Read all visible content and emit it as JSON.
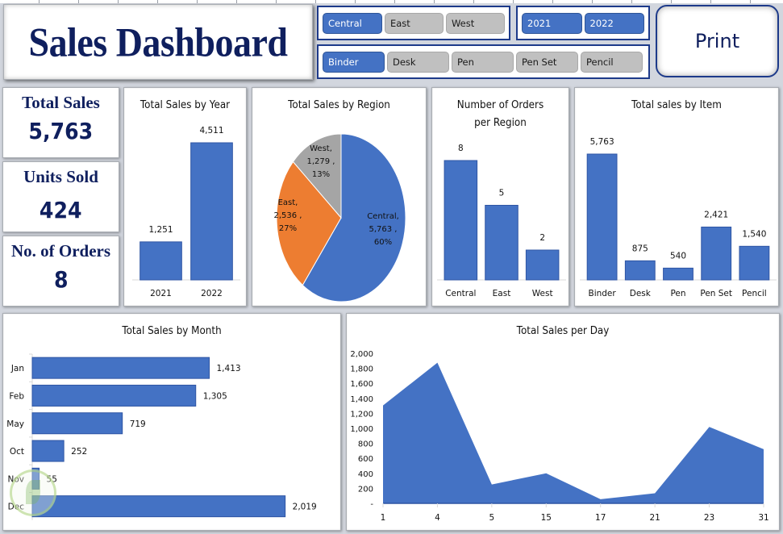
{
  "header": {
    "title": "Sales Dashboard",
    "print_label": "Print"
  },
  "slicers": {
    "region": [
      {
        "label": "Central",
        "selected": true
      },
      {
        "label": "East",
        "selected": false
      },
      {
        "label": "West",
        "selected": false
      }
    ],
    "year": [
      {
        "label": "2021",
        "selected": true
      },
      {
        "label": "2022",
        "selected": true
      }
    ],
    "item": [
      {
        "label": "Binder",
        "selected": true
      },
      {
        "label": "Desk",
        "selected": false
      },
      {
        "label": "Pen",
        "selected": false
      },
      {
        "label": "Pen Set",
        "selected": false
      },
      {
        "label": "Pencil",
        "selected": false
      }
    ]
  },
  "kpis": [
    {
      "label": "Total Sales",
      "value": "5,763"
    },
    {
      "label": "Units Sold",
      "value": "424"
    },
    {
      "label": "No. of Orders",
      "value": "8"
    }
  ],
  "colors": {
    "bar": "#4472c4",
    "bar_border": "#2f55a4",
    "east": "#ed7d31",
    "west": "#a5a5a5",
    "title_text": "#0f1f5e",
    "slicer_border": "#1d3a8a"
  },
  "chart_data": [
    {
      "id": "sales_by_year",
      "type": "bar",
      "title": "Total Sales by Year",
      "categories": [
        "2021",
        "2022"
      ],
      "values": [
        1251,
        4511
      ],
      "labels": [
        "1,251",
        "4,511"
      ]
    },
    {
      "id": "sales_by_region",
      "type": "pie",
      "title": "Total Sales by Region",
      "categories": [
        "Central",
        "East",
        "West"
      ],
      "values": [
        5763,
        2536,
        1279
      ],
      "percents": [
        60,
        27,
        13
      ],
      "labels": [
        [
          "Central,",
          "5,763 ,",
          "60%"
        ],
        [
          "East,",
          "2,536 ,",
          "27%"
        ],
        [
          "West,",
          "1,279 ,",
          "13%"
        ]
      ]
    },
    {
      "id": "orders_by_region",
      "type": "bar",
      "title": [
        "Number of Orders",
        "per Region"
      ],
      "categories": [
        "Central",
        "East",
        "West"
      ],
      "values": [
        8,
        5,
        2
      ],
      "labels": [
        "8",
        "5",
        "2"
      ]
    },
    {
      "id": "sales_by_item",
      "type": "bar",
      "title": "Total sales by Item",
      "categories": [
        "Binder",
        "Desk",
        "Pen",
        "Pen Set",
        "Pencil"
      ],
      "values": [
        5763,
        875,
        540,
        2421,
        1540
      ],
      "labels": [
        "5,763",
        "875",
        "540",
        "2,421",
        "1,540"
      ]
    },
    {
      "id": "sales_by_month",
      "type": "bar",
      "orientation": "horizontal",
      "title": "Total Sales by Month",
      "categories": [
        "Jan",
        "Feb",
        "May",
        "Oct",
        "Nov",
        "Dec"
      ],
      "values": [
        1413,
        1305,
        719,
        252,
        55,
        2019
      ],
      "labels": [
        "1,413",
        "1,305",
        "719",
        "252",
        "55",
        "2,019"
      ]
    },
    {
      "id": "sales_per_day",
      "type": "area",
      "title": "Total Sales per Day",
      "categories": [
        "1",
        "4",
        "5",
        "15",
        "17",
        "21",
        "23",
        "31"
      ],
      "values": [
        1305,
        1875,
        252,
        400,
        55,
        135,
        1019,
        722
      ],
      "ylim": [
        0,
        2000
      ],
      "yticks": [
        0,
        200,
        400,
        600,
        800,
        1000,
        1200,
        1400,
        1600,
        1800,
        2000
      ],
      "ytick_labels": [
        "-",
        "200",
        "400",
        "600",
        "800",
        "1,000",
        "1,200",
        "1,400",
        "1,600",
        "1,800",
        "2,000"
      ],
      "grid": false
    }
  ]
}
